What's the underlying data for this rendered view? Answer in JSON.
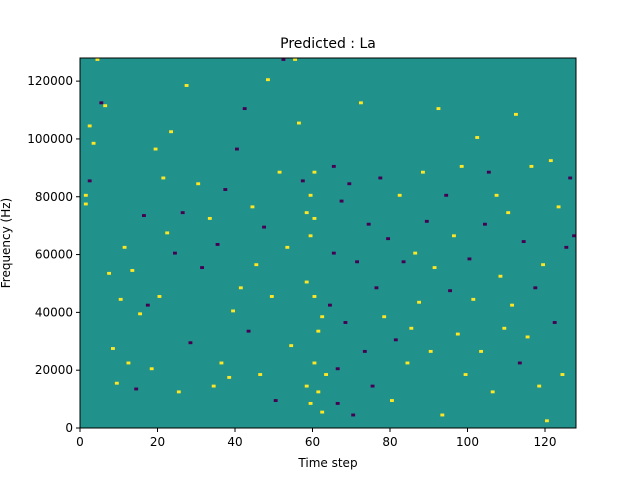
{
  "chart_data": {
    "type": "heatmap",
    "title": "Predicted : La",
    "xlabel": "Time step",
    "ylabel": "Frequency (Hz)",
    "xlim": [
      0,
      128
    ],
    "ylim": [
      0,
      128000
    ],
    "x_ticks": [
      0,
      20,
      40,
      60,
      80,
      100,
      120
    ],
    "y_ticks": [
      0,
      20000,
      40000,
      60000,
      80000,
      100000,
      120000
    ],
    "grid": false,
    "grid_shape": {
      "time_steps": 128,
      "frequency_bins": 128,
      "bin_hz": 1000
    },
    "value_levels": [
      -1,
      0,
      1
    ],
    "colors": {
      "-1": "#440154",
      "0": "#21918c",
      "1": "#fde725"
    },
    "background_value": 0,
    "cells": [
      {
        "t": 1,
        "f": 80000,
        "v": 1
      },
      {
        "t": 1,
        "f": 77000,
        "v": 1
      },
      {
        "t": 2,
        "f": 104000,
        "v": 1
      },
      {
        "t": 2,
        "f": 85000,
        "v": -1
      },
      {
        "t": 3,
        "f": 98000,
        "v": 1
      },
      {
        "t": 4,
        "f": 127000,
        "v": 1
      },
      {
        "t": 5,
        "f": 112000,
        "v": -1
      },
      {
        "t": 6,
        "f": 111000,
        "v": 1
      },
      {
        "t": 7,
        "f": 53000,
        "v": 1
      },
      {
        "t": 8,
        "f": 27000,
        "v": 1
      },
      {
        "t": 9,
        "f": 15000,
        "v": 1
      },
      {
        "t": 10,
        "f": 44000,
        "v": 1
      },
      {
        "t": 11,
        "f": 62000,
        "v": 1
      },
      {
        "t": 12,
        "f": 22000,
        "v": 1
      },
      {
        "t": 13,
        "f": 54000,
        "v": 1
      },
      {
        "t": 14,
        "f": 13000,
        "v": -1
      },
      {
        "t": 15,
        "f": 39000,
        "v": 1
      },
      {
        "t": 16,
        "f": 73000,
        "v": -1
      },
      {
        "t": 17,
        "f": 42000,
        "v": -1
      },
      {
        "t": 18,
        "f": 20000,
        "v": 1
      },
      {
        "t": 19,
        "f": 96000,
        "v": 1
      },
      {
        "t": 20,
        "f": 45000,
        "v": 1
      },
      {
        "t": 21,
        "f": 86000,
        "v": 1
      },
      {
        "t": 22,
        "f": 67000,
        "v": 1
      },
      {
        "t": 23,
        "f": 102000,
        "v": 1
      },
      {
        "t": 24,
        "f": 60000,
        "v": -1
      },
      {
        "t": 25,
        "f": 12000,
        "v": 1
      },
      {
        "t": 26,
        "f": 74000,
        "v": -1
      },
      {
        "t": 27,
        "f": 118000,
        "v": 1
      },
      {
        "t": 28,
        "f": 29000,
        "v": -1
      },
      {
        "t": 30,
        "f": 84000,
        "v": 1
      },
      {
        "t": 31,
        "f": 55000,
        "v": -1
      },
      {
        "t": 33,
        "f": 72000,
        "v": 1
      },
      {
        "t": 34,
        "f": 14000,
        "v": 1
      },
      {
        "t": 35,
        "f": 63000,
        "v": -1
      },
      {
        "t": 36,
        "f": 22000,
        "v": 1
      },
      {
        "t": 37,
        "f": 82000,
        "v": -1
      },
      {
        "t": 38,
        "f": 17000,
        "v": 1
      },
      {
        "t": 39,
        "f": 40000,
        "v": 1
      },
      {
        "t": 40,
        "f": 96000,
        "v": -1
      },
      {
        "t": 41,
        "f": 48000,
        "v": 1
      },
      {
        "t": 42,
        "f": 110000,
        "v": -1
      },
      {
        "t": 43,
        "f": 33000,
        "v": -1
      },
      {
        "t": 44,
        "f": 76000,
        "v": 1
      },
      {
        "t": 45,
        "f": 56000,
        "v": 1
      },
      {
        "t": 46,
        "f": 18000,
        "v": 1
      },
      {
        "t": 47,
        "f": 69000,
        "v": -1
      },
      {
        "t": 48,
        "f": 120000,
        "v": 1
      },
      {
        "t": 49,
        "f": 45000,
        "v": 1
      },
      {
        "t": 50,
        "f": 9000,
        "v": -1
      },
      {
        "t": 51,
        "f": 88000,
        "v": 1
      },
      {
        "t": 52,
        "f": 127000,
        "v": -1
      },
      {
        "t": 53,
        "f": 62000,
        "v": 1
      },
      {
        "t": 54,
        "f": 28000,
        "v": 1
      },
      {
        "t": 55,
        "f": 127000,
        "v": 1
      },
      {
        "t": 56,
        "f": 105000,
        "v": 1
      },
      {
        "t": 57,
        "f": 85000,
        "v": -1
      },
      {
        "t": 58,
        "f": 74000,
        "v": 1
      },
      {
        "t": 58,
        "f": 50000,
        "v": 1
      },
      {
        "t": 58,
        "f": 14000,
        "v": 1
      },
      {
        "t": 59,
        "f": 80000,
        "v": 1
      },
      {
        "t": 59,
        "f": 66000,
        "v": 1
      },
      {
        "t": 59,
        "f": 8000,
        "v": 1
      },
      {
        "t": 60,
        "f": 88000,
        "v": 1
      },
      {
        "t": 60,
        "f": 72000,
        "v": 1
      },
      {
        "t": 60,
        "f": 45000,
        "v": 1
      },
      {
        "t": 60,
        "f": 22000,
        "v": 1
      },
      {
        "t": 61,
        "f": 33000,
        "v": 1
      },
      {
        "t": 61,
        "f": 12000,
        "v": 1
      },
      {
        "t": 62,
        "f": 38000,
        "v": 1
      },
      {
        "t": 62,
        "f": 5000,
        "v": 1
      },
      {
        "t": 63,
        "f": 18000,
        "v": 1
      },
      {
        "t": 64,
        "f": 42000,
        "v": -1
      },
      {
        "t": 65,
        "f": 90000,
        "v": -1
      },
      {
        "t": 65,
        "f": 60000,
        "v": -1
      },
      {
        "t": 66,
        "f": 20000,
        "v": -1
      },
      {
        "t": 66,
        "f": 8000,
        "v": -1
      },
      {
        "t": 67,
        "f": 78000,
        "v": -1
      },
      {
        "t": 68,
        "f": 36000,
        "v": -1
      },
      {
        "t": 69,
        "f": 84000,
        "v": -1
      },
      {
        "t": 70,
        "f": 4000,
        "v": -1
      },
      {
        "t": 71,
        "f": 57000,
        "v": -1
      },
      {
        "t": 72,
        "f": 112000,
        "v": 1
      },
      {
        "t": 73,
        "f": 26000,
        "v": -1
      },
      {
        "t": 74,
        "f": 70000,
        "v": -1
      },
      {
        "t": 75,
        "f": 14000,
        "v": -1
      },
      {
        "t": 76,
        "f": 48000,
        "v": -1
      },
      {
        "t": 77,
        "f": 86000,
        "v": -1
      },
      {
        "t": 78,
        "f": 38000,
        "v": 1
      },
      {
        "t": 79,
        "f": 65000,
        "v": -1
      },
      {
        "t": 80,
        "f": 9000,
        "v": 1
      },
      {
        "t": 81,
        "f": 30000,
        "v": -1
      },
      {
        "t": 82,
        "f": 80000,
        "v": 1
      },
      {
        "t": 83,
        "f": 57000,
        "v": -1
      },
      {
        "t": 84,
        "f": 22000,
        "v": 1
      },
      {
        "t": 85,
        "f": 34000,
        "v": 1
      },
      {
        "t": 86,
        "f": 60000,
        "v": 1
      },
      {
        "t": 87,
        "f": 43000,
        "v": 1
      },
      {
        "t": 88,
        "f": 88000,
        "v": 1
      },
      {
        "t": 89,
        "f": 71000,
        "v": -1
      },
      {
        "t": 90,
        "f": 26000,
        "v": 1
      },
      {
        "t": 91,
        "f": 55000,
        "v": 1
      },
      {
        "t": 92,
        "f": 110000,
        "v": 1
      },
      {
        "t": 93,
        "f": 4000,
        "v": 1
      },
      {
        "t": 94,
        "f": 80000,
        "v": -1
      },
      {
        "t": 95,
        "f": 47000,
        "v": -1
      },
      {
        "t": 96,
        "f": 66000,
        "v": 1
      },
      {
        "t": 97,
        "f": 32000,
        "v": 1
      },
      {
        "t": 98,
        "f": 90000,
        "v": 1
      },
      {
        "t": 99,
        "f": 18000,
        "v": 1
      },
      {
        "t": 100,
        "f": 58000,
        "v": -1
      },
      {
        "t": 101,
        "f": 44000,
        "v": 1
      },
      {
        "t": 102,
        "f": 100000,
        "v": 1
      },
      {
        "t": 103,
        "f": 26000,
        "v": 1
      },
      {
        "t": 104,
        "f": 70000,
        "v": -1
      },
      {
        "t": 105,
        "f": 88000,
        "v": -1
      },
      {
        "t": 106,
        "f": 12000,
        "v": 1
      },
      {
        "t": 107,
        "f": 80000,
        "v": 1
      },
      {
        "t": 108,
        "f": 52000,
        "v": 1
      },
      {
        "t": 109,
        "f": 34000,
        "v": 1
      },
      {
        "t": 110,
        "f": 74000,
        "v": 1
      },
      {
        "t": 111,
        "f": 42000,
        "v": 1
      },
      {
        "t": 112,
        "f": 108000,
        "v": 1
      },
      {
        "t": 113,
        "f": 22000,
        "v": -1
      },
      {
        "t": 114,
        "f": 64000,
        "v": -1
      },
      {
        "t": 115,
        "f": 31000,
        "v": 1
      },
      {
        "t": 116,
        "f": 90000,
        "v": 1
      },
      {
        "t": 117,
        "f": 48000,
        "v": -1
      },
      {
        "t": 118,
        "f": 14000,
        "v": 1
      },
      {
        "t": 119,
        "f": 56000,
        "v": 1
      },
      {
        "t": 120,
        "f": 2000,
        "v": 1
      },
      {
        "t": 121,
        "f": 92000,
        "v": 1
      },
      {
        "t": 122,
        "f": 36000,
        "v": -1
      },
      {
        "t": 123,
        "f": 76000,
        "v": 1
      },
      {
        "t": 124,
        "f": 18000,
        "v": 1
      },
      {
        "t": 125,
        "f": 62000,
        "v": -1
      },
      {
        "t": 126,
        "f": 86000,
        "v": -1
      },
      {
        "t": 127,
        "f": 66000,
        "v": -1
      }
    ]
  }
}
